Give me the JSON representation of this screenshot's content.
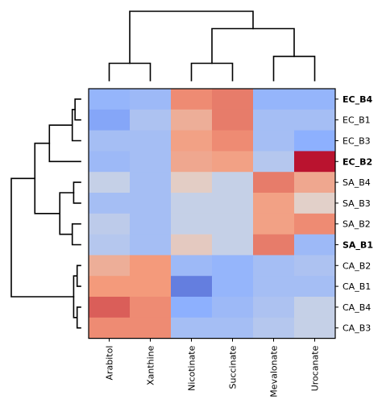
{
  "chart_data": {
    "type": "heatmap",
    "title": "",
    "colormap": "coolwarm",
    "value_range": [
      -1,
      1
    ],
    "legend": "none",
    "columns": [
      "Arabitol",
      "Xanthine",
      "Nicotinate",
      "Succinate",
      "Mevalonate",
      "Urocanate"
    ],
    "rows": [
      "EC_B4",
      "EC_B1",
      "EC_B3",
      "EC_B2",
      "SA_B4",
      "SA_B3",
      "SA_B2",
      "SA_B1",
      "CA_B2",
      "CA_B1",
      "CA_B4",
      "CA_B3"
    ],
    "bold_rows": [
      "EC_B4",
      "EC_B2",
      "SA_B1"
    ],
    "values": [
      [
        -0.45,
        -0.4,
        0.55,
        0.6,
        -0.45,
        -0.45
      ],
      [
        -0.55,
        -0.3,
        0.35,
        0.6,
        -0.35,
        -0.35
      ],
      [
        -0.35,
        -0.35,
        0.45,
        0.55,
        -0.35,
        -0.5
      ],
      [
        -0.4,
        -0.35,
        0.4,
        0.45,
        -0.25,
        0.95
      ],
      [
        -0.15,
        -0.35,
        0.12,
        -0.15,
        0.6,
        0.4
      ],
      [
        -0.35,
        -0.35,
        -0.15,
        -0.15,
        0.45,
        0.1
      ],
      [
        -0.2,
        -0.35,
        -0.15,
        -0.15,
        0.45,
        0.55
      ],
      [
        -0.25,
        -0.35,
        0.15,
        -0.15,
        0.6,
        -0.4
      ],
      [
        0.35,
        0.5,
        -0.4,
        -0.45,
        -0.35,
        -0.3
      ],
      [
        0.5,
        0.5,
        -0.75,
        -0.45,
        -0.35,
        -0.35
      ],
      [
        0.7,
        0.55,
        -0.5,
        -0.4,
        -0.3,
        -0.15
      ],
      [
        0.55,
        0.55,
        -0.35,
        -0.35,
        -0.25,
        -0.15
      ]
    ],
    "column_dendrogram": {
      "leaf_order": [
        "Arabitol",
        "Xanthine",
        "Nicotinate",
        "Succinate",
        "Mevalonate",
        "Urocanate"
      ],
      "merges": [
        [
          0,
          1,
          0.25
        ],
        [
          2,
          3,
          0.25
        ],
        [
          4,
          5,
          0.35
        ],
        [
          7,
          8,
          0.75
        ],
        [
          6,
          9,
          1.0
        ]
      ]
    },
    "row_dendrogram": {
      "leaf_order": [
        "EC_B4",
        "EC_B1",
        "EC_B3",
        "EC_B2",
        "SA_B4",
        "SA_B3",
        "SA_B2",
        "SA_B1",
        "CA_B2",
        "CA_B1",
        "CA_B4",
        "CA_B3"
      ],
      "merges": [
        [
          0,
          1,
          0.08
        ],
        [
          12,
          2,
          0.12
        ],
        [
          13,
          3,
          0.45
        ],
        [
          4,
          5,
          0.1
        ],
        [
          6,
          7,
          0.12
        ],
        [
          15,
          16,
          0.3
        ],
        [
          14,
          17,
          0.66
        ],
        [
          8,
          9,
          0.05
        ],
        [
          10,
          11,
          0.05
        ],
        [
          19,
          20,
          0.1
        ],
        [
          18,
          21,
          1.0
        ]
      ]
    }
  }
}
